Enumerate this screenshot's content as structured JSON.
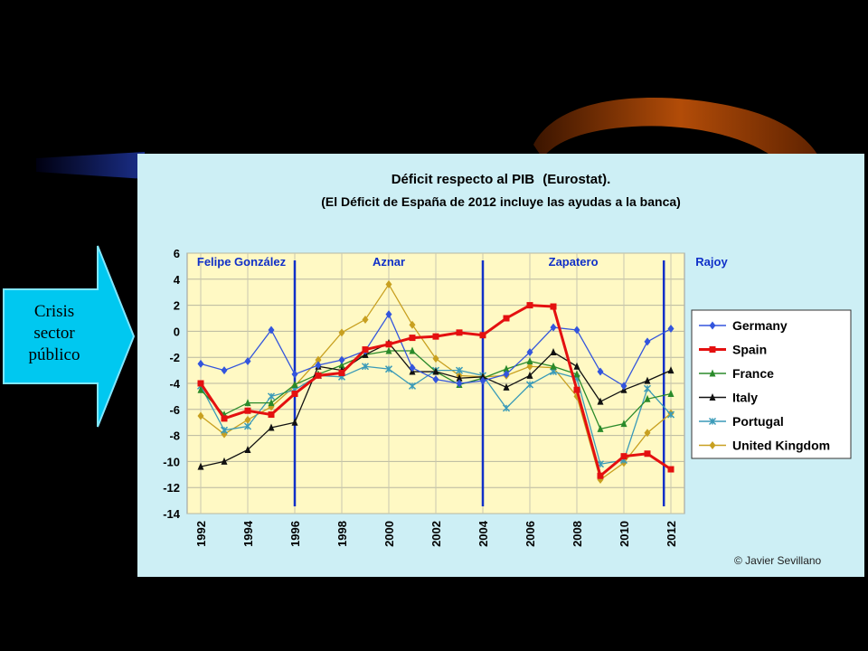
{
  "callout": {
    "lines": [
      "Crisis",
      "sector",
      "público"
    ],
    "fill": "#00c8f0"
  },
  "chart_data": {
    "type": "line",
    "title": "Déficit respecto al PIB",
    "title_source": "(Eurostat).",
    "subtitle": "(El Déficit de España de 2012 incluye las ayudas a la banca)",
    "xlabel": "",
    "ylabel": "",
    "xlim": [
      1992,
      2012
    ],
    "ylim": [
      -14,
      6
    ],
    "yticks": [
      6,
      4,
      2,
      0,
      -2,
      -4,
      -6,
      -8,
      -10,
      -12,
      -14
    ],
    "xticks": [
      1992,
      1994,
      1996,
      1998,
      2000,
      2002,
      2004,
      2006,
      2008,
      2010,
      2012
    ],
    "grid": true,
    "legend": "right",
    "periods": [
      {
        "name": "Felipe González",
        "start": 1992,
        "end": 1996
      },
      {
        "name": "Aznar",
        "start": 1996,
        "end": 2004
      },
      {
        "name": "Zapatero",
        "start": 2004,
        "end": 2011.7
      },
      {
        "name": "Rajoy",
        "start": 2011.7,
        "end": 2012
      }
    ],
    "x": [
      1992,
      1993,
      1994,
      1995,
      1996,
      1997,
      1998,
      1999,
      2000,
      2001,
      2002,
      2003,
      2004,
      2005,
      2006,
      2007,
      2008,
      2009,
      2010,
      2011,
      2012
    ],
    "series": [
      {
        "name": "Germany",
        "color": "#3355dd",
        "marker": "diamond",
        "values": [
          -2.5,
          -3.0,
          -2.3,
          0.1,
          -3.3,
          -2.6,
          -2.2,
          -1.5,
          1.3,
          -2.8,
          -3.7,
          -4.0,
          -3.8,
          -3.3,
          -1.6,
          0.3,
          0.1,
          -3.1,
          -4.2,
          -0.8,
          0.2
        ]
      },
      {
        "name": "Spain",
        "color": "#e41010",
        "marker": "square",
        "bold": true,
        "values": [
          -4.0,
          -6.7,
          -6.1,
          -6.4,
          -4.8,
          -3.4,
          -3.2,
          -1.4,
          -1.0,
          -0.5,
          -0.4,
          -0.1,
          -0.3,
          1.0,
          2.0,
          1.9,
          -4.5,
          -11.1,
          -9.6,
          -9.4,
          -10.6
        ]
      },
      {
        "name": "France",
        "color": "#2a8a2a",
        "marker": "triangle",
        "values": [
          -4.5,
          -6.4,
          -5.5,
          -5.5,
          -4.1,
          -3.3,
          -2.6,
          -1.8,
          -1.5,
          -1.5,
          -3.1,
          -4.1,
          -3.6,
          -2.9,
          -2.3,
          -2.7,
          -3.3,
          -7.5,
          -7.1,
          -5.2,
          -4.8
        ]
      },
      {
        "name": "Italy",
        "color": "#111111",
        "marker": "triangle",
        "values": [
          -10.4,
          -10.0,
          -9.1,
          -7.4,
          -7.0,
          -2.7,
          -3.0,
          -1.8,
          -0.9,
          -3.1,
          -3.1,
          -3.6,
          -3.5,
          -4.3,
          -3.4,
          -1.6,
          -2.7,
          -5.4,
          -4.5,
          -3.8,
          -3.0
        ]
      },
      {
        "name": "Portugal",
        "color": "#3a9ab8",
        "marker": "star",
        "values": [
          -4.2,
          -7.6,
          -7.3,
          -5.0,
          -4.5,
          -3.4,
          -3.5,
          -2.7,
          -2.9,
          -4.2,
          -3.0,
          -3.0,
          -3.4,
          -5.9,
          -4.1,
          -3.1,
          -3.6,
          -10.2,
          -9.9,
          -4.4,
          -6.4
        ]
      },
      {
        "name": "United Kingdom",
        "color": "#c8a020",
        "marker": "diamond",
        "values": [
          -6.5,
          -7.9,
          -6.8,
          -5.8,
          -4.2,
          -2.2,
          -0.1,
          0.9,
          3.6,
          0.5,
          -2.1,
          -3.4,
          -3.5,
          -3.4,
          -2.7,
          -2.8,
          -5.0,
          -11.4,
          -10.1,
          -7.8,
          -6.3
        ]
      }
    ],
    "credit": "© Javier Sevillano"
  }
}
